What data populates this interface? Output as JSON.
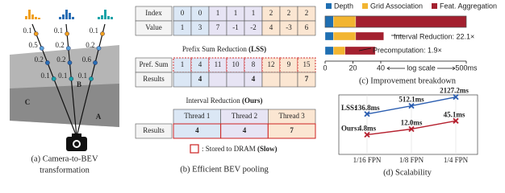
{
  "panel_a": {
    "caption": [
      "(a) Camera-to-BEV",
      "transformation"
    ],
    "columns": [
      {
        "letter": "C",
        "probs": [
          "0.1",
          "0.5",
          "0.2",
          "0.1"
        ]
      },
      {
        "letter": "B",
        "probs": [
          "0.1",
          "0.2",
          "0.2",
          "0.1"
        ]
      },
      {
        "letter": "A",
        "probs": [
          "0.1",
          "0.2",
          "0.6",
          "0.1"
        ]
      }
    ]
  },
  "panel_b": {
    "caption": "(b) Efficient BEV pooling",
    "index_label": "Index",
    "value_label": "Value",
    "index": [
      0,
      0,
      1,
      1,
      1,
      2,
      2,
      2
    ],
    "values": [
      1,
      3,
      7,
      -1,
      -2,
      4,
      -3,
      6
    ],
    "prefix_title": "Prefix Sum Reduction",
    "prefix_method": "(LSS)",
    "pref_label": "Pref. Sum",
    "prefix": [
      1,
      4,
      11,
      10,
      8,
      12,
      9,
      15
    ],
    "results_label": "Results",
    "prefix_results": [
      null,
      4,
      null,
      null,
      4,
      null,
      null,
      7
    ],
    "interval_title": "Interval Reduction",
    "interval_method": "(Ours)",
    "threads": [
      "Thread 1",
      "Thread 2",
      "Thread 3"
    ],
    "thread_results": [
      4,
      4,
      7
    ],
    "legend": ": Stored to DRAM",
    "legend_bold": "(Slow)"
  },
  "chart_data": [
    {
      "type": "bar",
      "orientation": "horizontal",
      "stacked": true,
      "caption": "(c) Improvement breakdown",
      "categories": [
        null,
        null,
        null
      ],
      "series": [
        {
          "name": "Depth",
          "color": "#1f6fb2",
          "values": [
            6,
            6,
            6
          ]
        },
        {
          "name": "Grid Association",
          "color": "#f2b531",
          "values": [
            16,
            16,
            8.4
          ]
        },
        {
          "name": "Feat. Aggregation",
          "color": "#a3202f",
          "values": [
            478,
            21.6,
            21.6
          ]
        }
      ],
      "annotations": [
        "Interval Reduction: 22.1×",
        "Precomputation: 1.9×"
      ],
      "xlim": [
        0,
        500
      ],
      "xticks": [
        0,
        20,
        40,
        {
          "value": 500,
          "label": "500ms"
        }
      ],
      "x_break_label": "log scale",
      "legend": "top"
    },
    {
      "type": "line",
      "caption": "(d) Scalability",
      "categories": [
        "1/16 FPN",
        "1/8 FPN",
        "1/4 FPN"
      ],
      "series": [
        {
          "name": "LSS:",
          "color": "#2a5db0",
          "values": [
            136.8,
            512.1,
            2127.2
          ],
          "value_labels": [
            "136.8ms",
            "512.1ms",
            "2127.2ms"
          ]
        },
        {
          "name": "Ours:",
          "color": "#b5202e",
          "values": [
            4.8,
            12.0,
            45.1
          ],
          "value_labels": [
            "4.8ms",
            "12.0ms",
            "45.1ms"
          ]
        }
      ],
      "ylim": [
        0.2,
        3000
      ],
      "log_y": true,
      "grid": true
    }
  ]
}
